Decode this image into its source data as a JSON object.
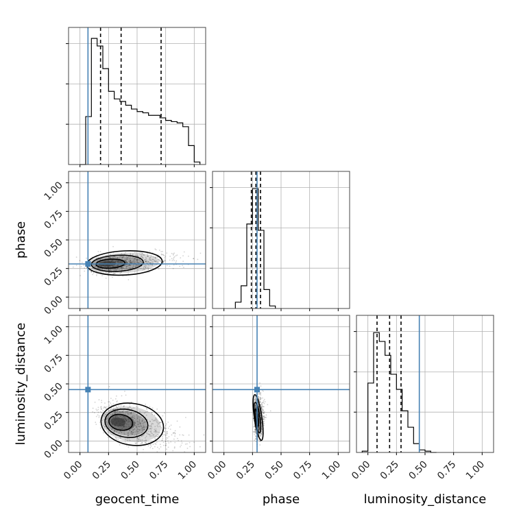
{
  "chart_data": {
    "type": "corner",
    "parameters": [
      "geocent_time",
      "phase",
      "luminosity_distance"
    ],
    "axis_range": [
      -0.1,
      1.1
    ],
    "ticks": [
      0.0,
      0.25,
      0.5,
      0.75,
      1.0
    ],
    "tick_labels": [
      "0.00",
      "0.25",
      "0.50",
      "0.75",
      "1.00"
    ],
    "grid": true,
    "truth": {
      "geocent_time": 0.07,
      "phase": 0.29,
      "luminosity_distance": 0.45
    },
    "truth_color": "#4682b4",
    "marginals": {
      "geocent_time": {
        "quantiles": [
          0.18,
          0.36,
          0.71
        ],
        "bin_edges": [
          0.0,
          0.05,
          0.1,
          0.15,
          0.2,
          0.25,
          0.3,
          0.35,
          0.4,
          0.45,
          0.5,
          0.55,
          0.6,
          0.65,
          0.7,
          0.75,
          0.8,
          0.85,
          0.9,
          0.95,
          1.0,
          1.05
        ],
        "counts": [
          0,
          0.38,
          1.0,
          0.94,
          0.76,
          0.58,
          0.52,
          0.5,
          0.47,
          0.44,
          0.42,
          0.41,
          0.39,
          0.39,
          0.37,
          0.35,
          0.34,
          0.33,
          0.3,
          0.15,
          0.02
        ]
      },
      "phase": {
        "quantiles": [
          0.24,
          0.28,
          0.32
        ],
        "bin_edges": [
          0.1,
          0.15,
          0.2,
          0.25,
          0.3,
          0.35,
          0.4,
          0.45
        ],
        "counts": [
          0.05,
          0.18,
          0.67,
          0.95,
          0.62,
          0.15,
          0.02
        ]
      },
      "luminosity_distance": {
        "quantiles": [
          0.08,
          0.19,
          0.29
        ],
        "bin_edges": [
          -0.05,
          0.0,
          0.05,
          0.1,
          0.15,
          0.2,
          0.25,
          0.3,
          0.35,
          0.4,
          0.45,
          0.5,
          0.55,
          0.6
        ],
        "counts": [
          0.01,
          0.55,
          0.95,
          0.88,
          0.77,
          0.62,
          0.5,
          0.33,
          0.2,
          0.07,
          0.02,
          0.01,
          0.0
        ]
      }
    },
    "joint": {
      "geocent_time__phase": {
        "center": [
          0.2,
          0.28
        ],
        "spread": [
          0.3,
          0.04
        ],
        "trend": 0.1
      },
      "geocent_time__luminosity_distance": {
        "center": [
          0.3,
          0.2
        ],
        "spread": [
          0.25,
          0.08
        ],
        "trend": -0.35
      },
      "phase__luminosity_distance": {
        "center": [
          0.28,
          0.2
        ],
        "spread": [
          0.03,
          0.09
        ],
        "trend": 0.3
      }
    }
  }
}
